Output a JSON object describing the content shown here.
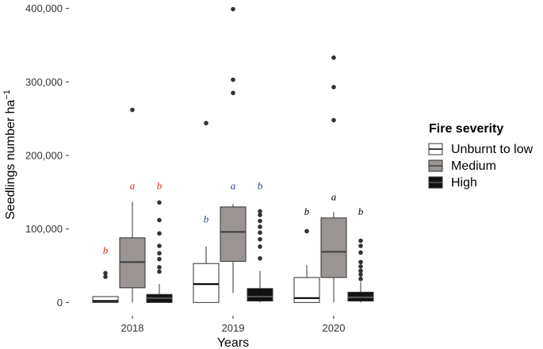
{
  "chart_data": {
    "type": "boxplot",
    "xlabel": "Years",
    "ylabel": "Seedlings number ha",
    "ylabel_superscript": "−1",
    "ylim": [
      -5000,
      405000
    ],
    "yticks": [
      0,
      100000,
      200000,
      300000,
      400000
    ],
    "ytick_labels": [
      "0",
      "100,000",
      "200,000",
      "300,000",
      "400,000"
    ],
    "categories": [
      "2018",
      "2019",
      "2020"
    ],
    "legend": {
      "title": "Fire severity",
      "position": "right",
      "entries": [
        "Unburnt to low",
        "Medium",
        "High"
      ]
    },
    "series": [
      {
        "name": "Unburnt to low",
        "color": "#ffffff",
        "median_color": "#000000",
        "boxes": [
          {
            "category": "2018",
            "q1": 0,
            "median": 2000,
            "q3": 8000,
            "whisker_low": 0,
            "whisker_high": 8000,
            "outliers": [
              35000,
              40000
            ]
          },
          {
            "category": "2019",
            "q1": 0,
            "median": 25000,
            "q3": 53000,
            "whisker_low": 0,
            "whisker_high": 76000,
            "outliers": [
              244000
            ]
          },
          {
            "category": "2020",
            "q1": 0,
            "median": 6000,
            "q3": 34000,
            "whisker_low": 0,
            "whisker_high": 51000,
            "outliers": [
              97000
            ]
          }
        ]
      },
      {
        "name": "Medium",
        "color": "#9a9492",
        "median_color": "#444444",
        "boxes": [
          {
            "category": "2018",
            "q1": 20000,
            "median": 55000,
            "q3": 88000,
            "whisker_low": 0,
            "whisker_high": 137000,
            "outliers": [
              262000
            ]
          },
          {
            "category": "2019",
            "q1": 56000,
            "median": 96000,
            "q3": 130000,
            "whisker_low": 13000,
            "whisker_high": 134000,
            "outliers": [
              285000,
              303000,
              399000
            ]
          },
          {
            "category": "2020",
            "q1": 34000,
            "median": 69000,
            "q3": 115000,
            "whisker_low": 0,
            "whisker_high": 123000,
            "outliers": [
              248000,
              293000,
              333000
            ]
          }
        ]
      },
      {
        "name": "High",
        "color": "#111111",
        "median_color": "#555555",
        "boxes": [
          {
            "category": "2018",
            "q1": 0,
            "median": 6000,
            "q3": 11000,
            "whisker_low": 0,
            "whisker_high": 25000,
            "outliers": [
              42000,
              48000,
              59000,
              67000,
              77000,
              94000,
              112000,
              136000
            ]
          },
          {
            "category": "2019",
            "q1": 2000,
            "median": 8000,
            "q3": 19000,
            "whisker_low": 0,
            "whisker_high": 43000,
            "outliers": [
              60000,
              76000,
              86000,
              95000,
              103000,
              111000,
              119000,
              124000
            ]
          },
          {
            "category": "2020",
            "q1": 2000,
            "median": 7000,
            "q3": 14000,
            "whisker_low": 0,
            "whisker_high": 28000,
            "outliers": [
              32000,
              38000,
              43000,
              49000,
              55000,
              68000,
              77000,
              84000
            ]
          }
        ]
      }
    ],
    "annotations": [
      {
        "category": "2018",
        "series": "Unburnt to low",
        "text": "b",
        "y": 66000,
        "color": "#d9261c"
      },
      {
        "category": "2018",
        "series": "Medium",
        "text": "a",
        "y": 154000,
        "color": "#d9261c"
      },
      {
        "category": "2018",
        "series": "High",
        "text": "b",
        "y": 154000,
        "color": "#d9261c"
      },
      {
        "category": "2019",
        "series": "Unburnt to low",
        "text": "b",
        "y": 109000,
        "color": "#2b3a8c"
      },
      {
        "category": "2019",
        "series": "Medium",
        "text": "a",
        "y": 154000,
        "color": "#2b3a8c"
      },
      {
        "category": "2019",
        "series": "High",
        "text": "b",
        "y": 154000,
        "color": "#2b3a8c"
      },
      {
        "category": "2020",
        "series": "Unburnt to low",
        "text": "b",
        "y": 119000,
        "color": "#000000"
      },
      {
        "category": "2020",
        "series": "Medium",
        "text": "a",
        "y": 139000,
        "color": "#000000"
      },
      {
        "category": "2020",
        "series": "High",
        "text": "b",
        "y": 119000,
        "color": "#000000"
      }
    ]
  }
}
